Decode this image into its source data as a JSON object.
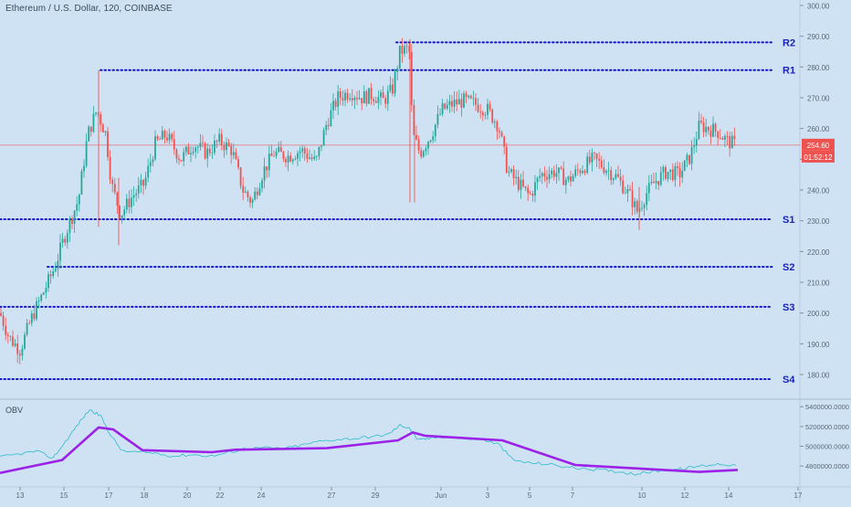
{
  "header": {
    "symbol_title": "Ethereum / U.S. Dollar, 120, COINBASE"
  },
  "indicator": {
    "name": "OBV"
  },
  "price_badges": {
    "last_price": "254.60",
    "countdown": "01:52:12",
    "color": "#ef5350"
  },
  "colors": {
    "background": "#cfe2f3",
    "up_candle": "#26a69a",
    "down_candle": "#ef5350",
    "level_line": "#1515c8",
    "level_label": "#1a23b8",
    "obv_line": "#2bbbc8",
    "obv_trend": "#9b22e6",
    "axis_text": "#5a6978"
  },
  "chart_data": [
    {
      "type": "candlestick",
      "title": "Ethereum / U.S. Dollar, 120, COINBASE",
      "x_tick_labels": [
        "13",
        "15",
        "17",
        "18",
        "20",
        "22",
        "24",
        "27",
        "29",
        "Jun",
        "3",
        "5",
        "7",
        "10",
        "12",
        "14",
        "17"
      ],
      "y_tick_labels": [
        "300.00",
        "290.00",
        "280.00",
        "270.00",
        "260.00",
        "250.00",
        "240.00",
        "230.00",
        "220.00",
        "210.00",
        "200.00",
        "190.00",
        "180.00"
      ],
      "ylim": [
        173,
        301
      ],
      "last_price": 254.6,
      "levels": [
        {
          "label": "R2",
          "value": 288.0
        },
        {
          "label": "R1",
          "value": 279.0
        },
        {
          "label": "S1",
          "value": 230.5
        },
        {
          "label": "S2",
          "value": 215.0
        },
        {
          "label": "S3",
          "value": 202.0
        },
        {
          "label": "S4",
          "value": 178.5
        }
      ],
      "price_path_anchors": [
        [
          0,
          200
        ],
        [
          10,
          192
        ],
        [
          22,
          188
        ],
        [
          34,
          198
        ],
        [
          48,
          207
        ],
        [
          60,
          215
        ],
        [
          72,
          226
        ],
        [
          86,
          237
        ],
        [
          96,
          258
        ],
        [
          106,
          266
        ],
        [
          116,
          258
        ],
        [
          122,
          242
        ],
        [
          132,
          232
        ],
        [
          145,
          238
        ],
        [
          158,
          242
        ],
        [
          170,
          255
        ],
        [
          182,
          258
        ],
        [
          198,
          250
        ],
        [
          212,
          255
        ],
        [
          226,
          252
        ],
        [
          240,
          256
        ],
        [
          254,
          253
        ],
        [
          266,
          240
        ],
        [
          276,
          236
        ],
        [
          288,
          246
        ],
        [
          300,
          252
        ],
        [
          316,
          251
        ],
        [
          330,
          253
        ],
        [
          346,
          249
        ],
        [
          358,
          262
        ],
        [
          370,
          270
        ],
        [
          384,
          272
        ],
        [
          396,
          270
        ],
        [
          408,
          271
        ],
        [
          420,
          269
        ],
        [
          430,
          273
        ],
        [
          438,
          285
        ],
        [
          448,
          286
        ],
        [
          452,
          258
        ],
        [
          460,
          252
        ],
        [
          472,
          258
        ],
        [
          484,
          266
        ],
        [
          496,
          268
        ],
        [
          508,
          269
        ],
        [
          520,
          268
        ],
        [
          534,
          266
        ],
        [
          546,
          261
        ],
        [
          556,
          246
        ],
        [
          568,
          242
        ],
        [
          580,
          238
        ],
        [
          592,
          245
        ],
        [
          608,
          246
        ],
        [
          622,
          243
        ],
        [
          636,
          247
        ],
        [
          650,
          250
        ],
        [
          664,
          247
        ],
        [
          676,
          244
        ],
        [
          690,
          238
        ],
        [
          698,
          233
        ],
        [
          708,
          239
        ],
        [
          718,
          243
        ],
        [
          730,
          246
        ],
        [
          744,
          245
        ],
        [
          756,
          251
        ],
        [
          766,
          261
        ],
        [
          776,
          260
        ],
        [
          786,
          259
        ],
        [
          796,
          256
        ],
        [
          806,
          254.6
        ]
      ]
    },
    {
      "type": "line",
      "title": "OBV",
      "y_tick_labels": [
        "5400000.0000",
        "5200000.0000",
        "5000000.0000",
        "4800000.0000"
      ],
      "ylim": [
        4690000,
        5430000
      ],
      "series": [
        {
          "name": "OBV",
          "values": [
            [
              0,
              4890000
            ],
            [
              20,
              4920000
            ],
            [
              40,
              4950000
            ],
            [
              58,
              4880000
            ],
            [
              72,
              5050000
            ],
            [
              86,
              5230000
            ],
            [
              98,
              5370000
            ],
            [
              110,
              5310000
            ],
            [
              122,
              5100000
            ],
            [
              134,
              4950000
            ],
            [
              150,
              4940000
            ],
            [
              170,
              4930000
            ],
            [
              190,
              4900000
            ],
            [
              210,
              4915000
            ],
            [
              232,
              4900000
            ],
            [
              252,
              4940000
            ],
            [
              270,
              4980000
            ],
            [
              290,
              4985000
            ],
            [
              310,
              4975000
            ],
            [
              330,
              5010000
            ],
            [
              350,
              5050000
            ],
            [
              370,
              5070000
            ],
            [
              390,
              5080000
            ],
            [
              410,
              5100000
            ],
            [
              425,
              5120000
            ],
            [
              438,
              5210000
            ],
            [
              448,
              5190000
            ],
            [
              458,
              5060000
            ],
            [
              470,
              5080000
            ],
            [
              490,
              5100000
            ],
            [
              510,
              5080000
            ],
            [
              530,
              5065000
            ],
            [
              546,
              5020000
            ],
            [
              562,
              4860000
            ],
            [
              580,
              4830000
            ],
            [
              600,
              4820000
            ],
            [
              620,
              4790000
            ],
            [
              640,
              4770000
            ],
            [
              660,
              4760000
            ],
            [
              680,
              4740000
            ],
            [
              696,
              4720000
            ],
            [
              712,
              4740000
            ],
            [
              730,
              4760000
            ],
            [
              748,
              4770000
            ],
            [
              766,
              4800000
            ],
            [
              786,
              4820000
            ],
            [
              806,
              4810000
            ]
          ]
        },
        {
          "name": "OBV trend",
          "values": [
            [
              0,
              4730000
            ],
            [
              68,
              4860000
            ],
            [
              108,
              5190000
            ],
            [
              124,
              5170000
            ],
            [
              156,
              4960000
            ],
            [
              232,
              4940000
            ],
            [
              258,
              4965000
            ],
            [
              358,
              4980000
            ],
            [
              436,
              5060000
            ],
            [
              452,
              5140000
            ],
            [
              466,
              5105000
            ],
            [
              550,
              5060000
            ],
            [
              630,
              4810000
            ],
            [
              766,
              4740000
            ],
            [
              808,
              4760000
            ]
          ]
        }
      ]
    }
  ]
}
